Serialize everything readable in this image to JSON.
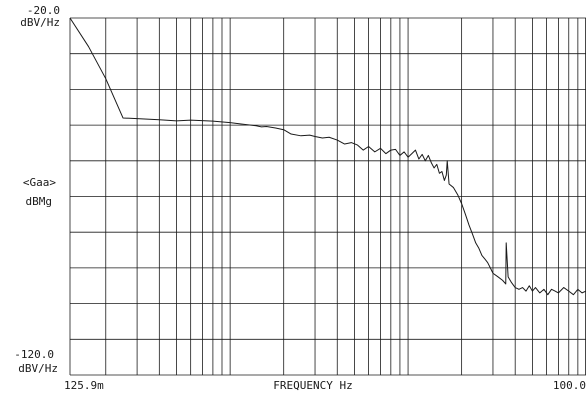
{
  "chart_data": {
    "type": "line",
    "x_scale": "log",
    "y_scale": "linear",
    "grid": true,
    "ylim": [
      -120.0,
      -20.0
    ],
    "xlim": [
      0.1259,
      100.0
    ],
    "y_top_label": [
      "-20.0",
      "dBV/Hz"
    ],
    "y_bottom_label": [
      "-120.0",
      "dBV/Hz"
    ],
    "y_axis_label": [
      "<Gaa>",
      "dBMg"
    ],
    "x_left_label": "125.9m",
    "x_right_label": "100.0",
    "x_axis_label": "FREQUENCY  Hz",
    "line_color": "#1a1a1a",
    "grid_color": "#1a1a1a",
    "series": [
      {
        "x": [
          0.1259,
          0.16,
          0.2,
          0.25,
          0.3,
          0.4,
          0.5,
          0.6,
          0.8,
          1.0,
          1.2,
          1.4,
          1.5,
          1.6,
          1.8,
          2.0,
          2.2,
          2.5,
          2.8,
          3.0,
          3.3,
          3.6,
          4.0,
          4.4,
          4.8,
          5.2,
          5.6,
          6.0,
          6.5,
          7.0,
          7.5,
          8.0,
          8.5,
          9.0,
          9.5,
          10.0,
          10.5,
          11.0,
          11.5,
          12.0,
          12.5,
          13.0,
          13.5,
          14.0,
          14.5,
          15.0,
          15.5,
          16.0,
          16.4,
          16.6,
          17.0,
          18.0,
          19.0,
          20.0,
          21.0,
          22.0,
          23.0,
          24.0,
          25.0,
          26.0,
          27.0,
          28.0,
          29.0,
          30.0,
          32.0,
          34.0,
          35.4,
          35.6,
          36.5,
          38.0,
          40.0,
          42.0,
          44.0,
          46.0,
          48.0,
          50.0,
          52.0,
          55.0,
          58.0,
          61.0,
          64.0,
          67.0,
          70.0,
          75.0,
          80.0,
          85.0,
          90.0,
          95.0,
          100.0
        ],
        "y": [
          -20.0,
          -28.0,
          -37.0,
          -48.0,
          -48.2,
          -48.5,
          -48.8,
          -48.6,
          -48.9,
          -49.3,
          -49.8,
          -50.2,
          -50.5,
          -50.4,
          -50.8,
          -51.3,
          -52.5,
          -53.0,
          -52.8,
          -53.2,
          -53.6,
          -53.4,
          -54.2,
          -55.3,
          -54.9,
          -55.6,
          -57.0,
          -56.0,
          -57.5,
          -56.5,
          -58.0,
          -57.0,
          -56.8,
          -58.5,
          -57.5,
          -59.0,
          -58.0,
          -57.0,
          -59.5,
          -58.2,
          -60.0,
          -58.5,
          -60.5,
          -62.0,
          -61.0,
          -63.5,
          -63.0,
          -65.5,
          -64.0,
          -60.0,
          -66.5,
          -67.5,
          -69.5,
          -72.0,
          -75.0,
          -78.0,
          -80.5,
          -83.0,
          -84.5,
          -86.5,
          -87.5,
          -88.5,
          -90.0,
          -91.5,
          -92.5,
          -93.5,
          -94.5,
          -83.0,
          -92.5,
          -94.0,
          -95.5,
          -96.0,
          -95.5,
          -96.5,
          -95.0,
          -96.5,
          -95.5,
          -97.0,
          -96.0,
          -97.5,
          -96.0,
          -96.5,
          -97.0,
          -95.5,
          -96.5,
          -97.5,
          -96.0,
          -97.0,
          -96.5
        ]
      }
    ]
  }
}
